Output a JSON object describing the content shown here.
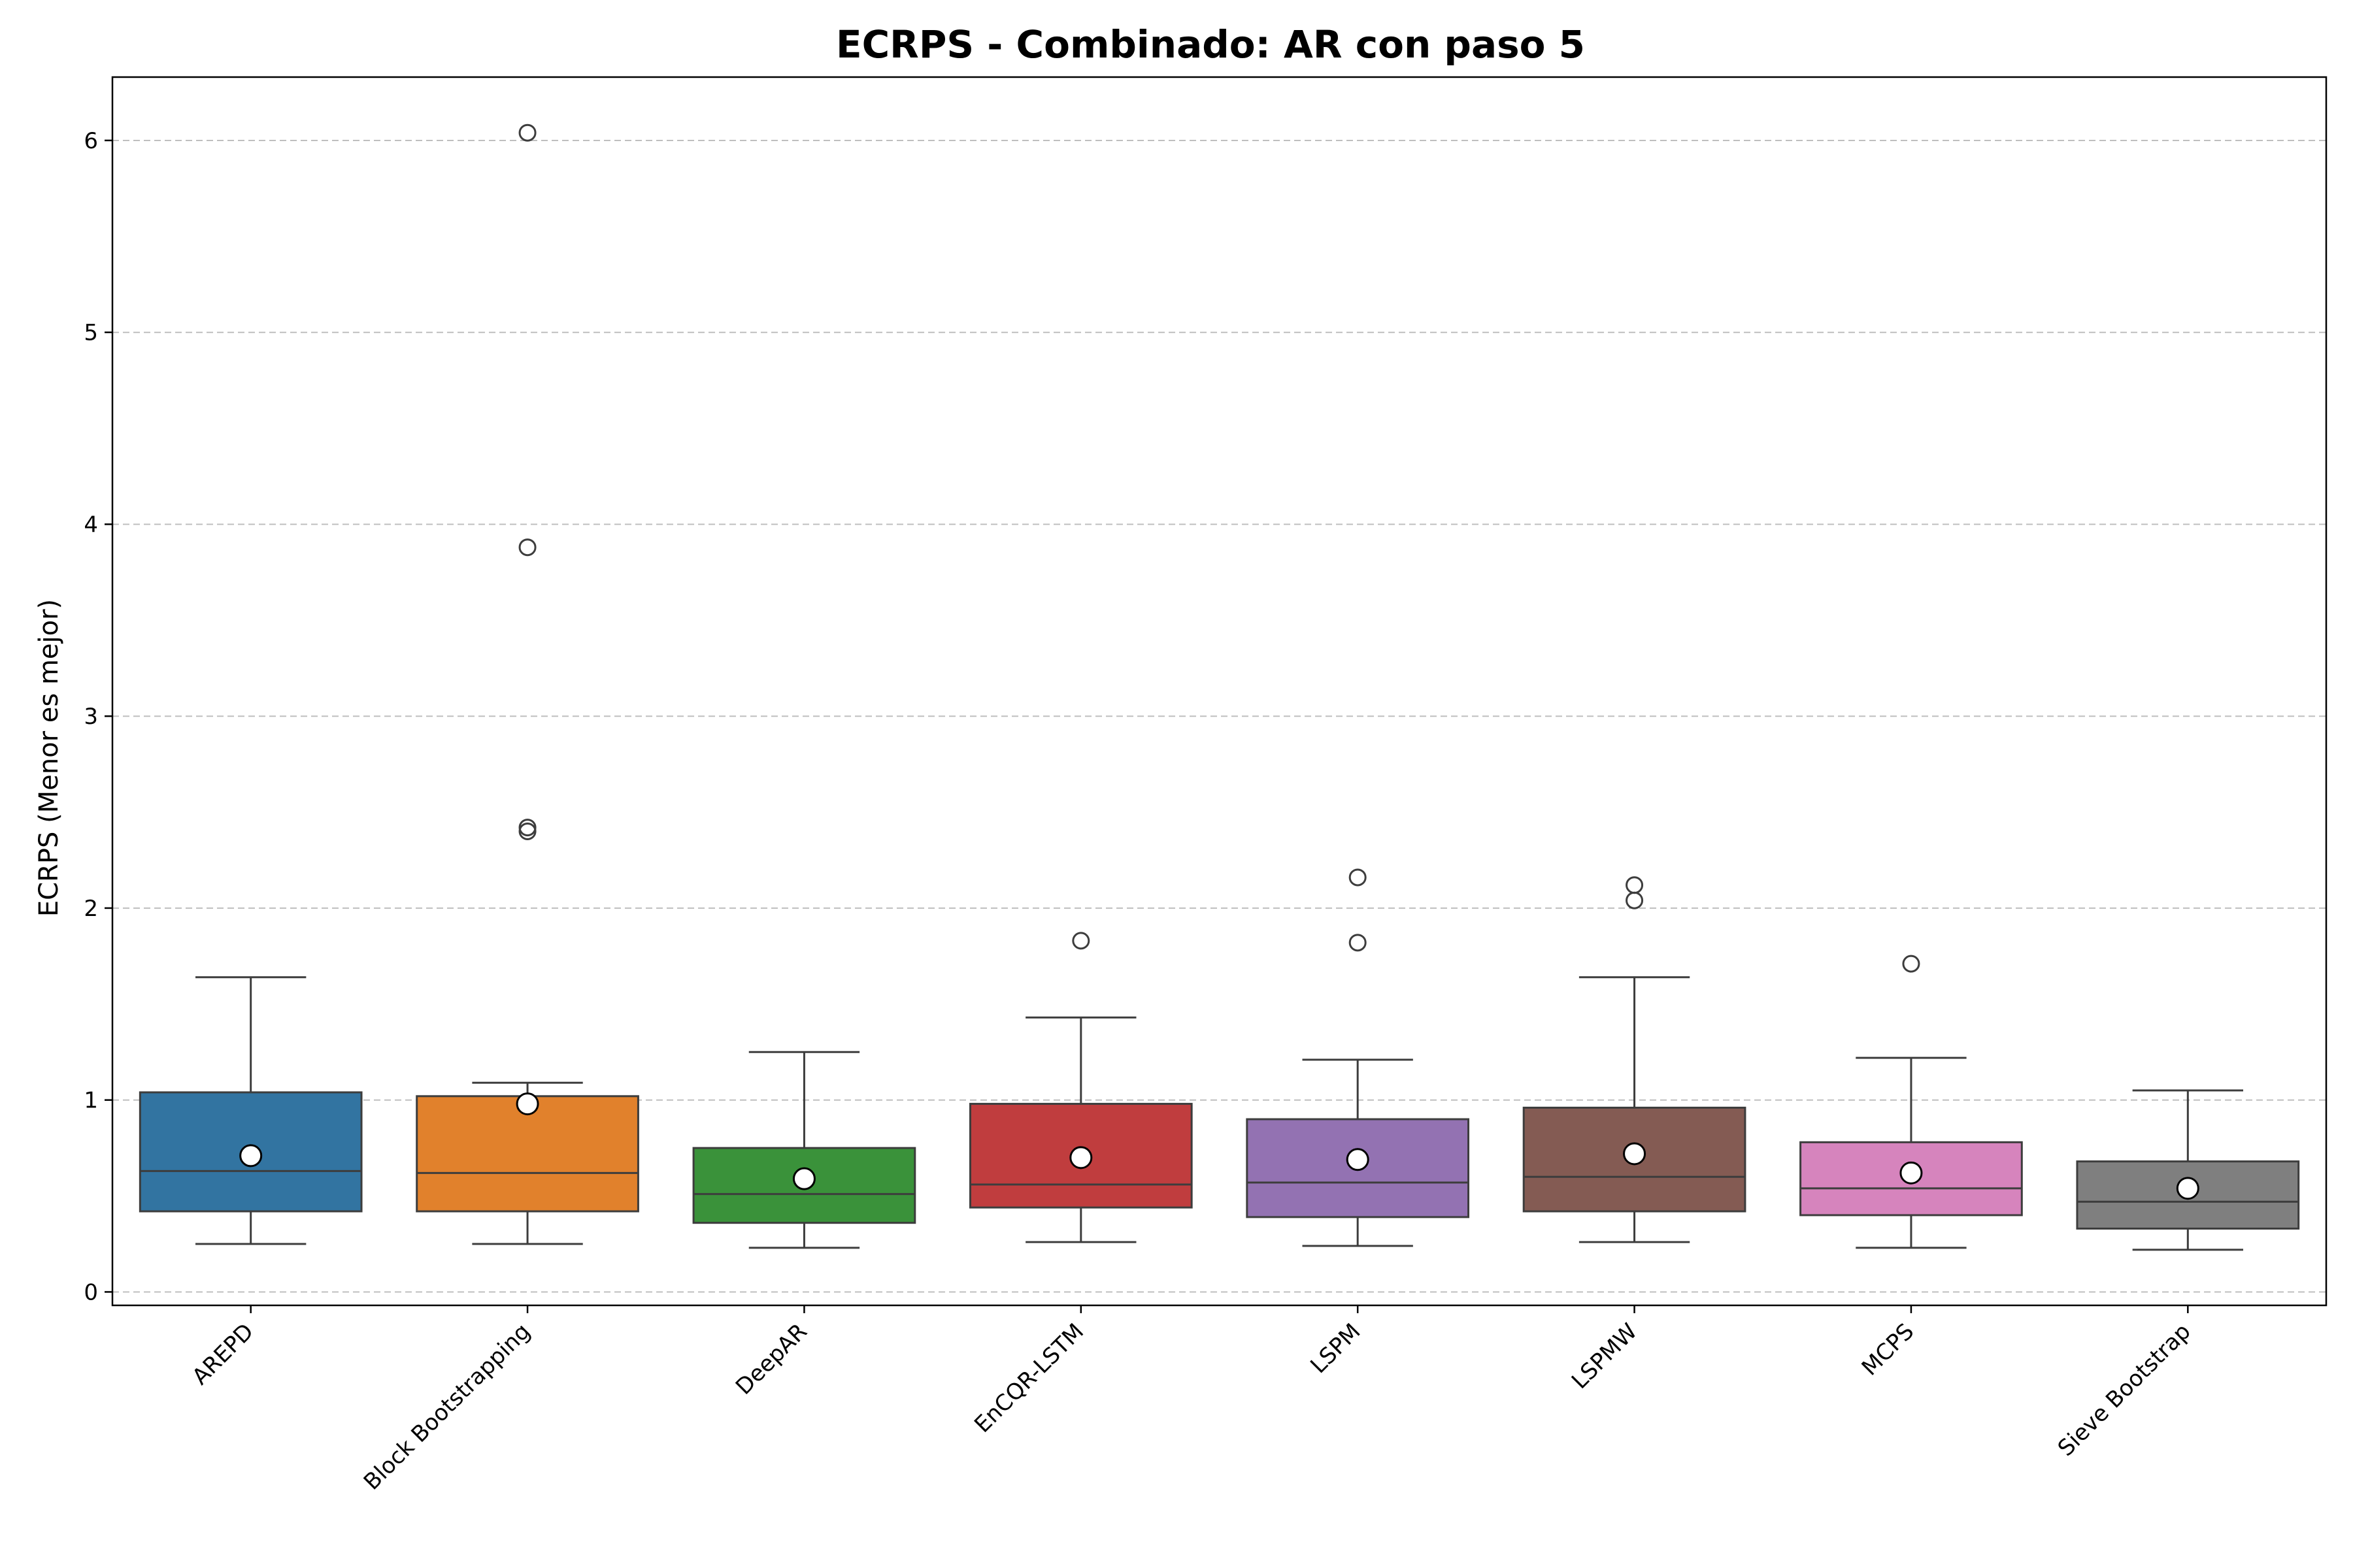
{
  "chart_data": {
    "type": "box",
    "title": "ECRPS - Combinado: AR con paso 5",
    "xlabel": "",
    "ylabel": "ECRPS (Menor es mejor)",
    "ylim": [
      -0.07,
      6.33
    ],
    "yticks": [
      0,
      1,
      2,
      3,
      4,
      5,
      6
    ],
    "grid": "y-dashed",
    "categories": [
      "AREPD",
      "Block Bootstrapping",
      "DeepAR",
      "EnCQR-LSTM",
      "LSPM",
      "LSPMW",
      "MCPS",
      "Sieve Bootstrap"
    ],
    "colors": [
      "#3274a1",
      "#e1812c",
      "#3a923a",
      "#c03d3e",
      "#9372b2",
      "#845b53",
      "#d684bd",
      "#7f7f7f"
    ],
    "boxes": [
      {
        "whisker_low": 0.25,
        "q1": 0.42,
        "median": 0.63,
        "q3": 1.04,
        "whisker_high": 1.64,
        "mean": 0.71,
        "outliers": []
      },
      {
        "whisker_low": 0.25,
        "q1": 0.42,
        "median": 0.62,
        "q3": 1.02,
        "whisker_high": 1.09,
        "mean": 0.98,
        "outliers": [
          2.4,
          2.42,
          3.88,
          6.04
        ]
      },
      {
        "whisker_low": 0.23,
        "q1": 0.36,
        "median": 0.51,
        "q3": 0.75,
        "whisker_high": 1.25,
        "mean": 0.59,
        "outliers": []
      },
      {
        "whisker_low": 0.26,
        "q1": 0.44,
        "median": 0.56,
        "q3": 0.98,
        "whisker_high": 1.43,
        "mean": 0.7,
        "outliers": [
          1.83
        ]
      },
      {
        "whisker_low": 0.24,
        "q1": 0.39,
        "median": 0.57,
        "q3": 0.9,
        "whisker_high": 1.21,
        "mean": 0.69,
        "outliers": [
          1.82,
          2.16
        ]
      },
      {
        "whisker_low": 0.26,
        "q1": 0.42,
        "median": 0.6,
        "q3": 0.96,
        "whisker_high": 1.64,
        "mean": 0.72,
        "outliers": [
          2.04,
          2.12
        ]
      },
      {
        "whisker_low": 0.23,
        "q1": 0.4,
        "median": 0.54,
        "q3": 0.78,
        "whisker_high": 1.22,
        "mean": 0.62,
        "outliers": [
          1.71
        ]
      },
      {
        "whisker_low": 0.22,
        "q1": 0.33,
        "median": 0.47,
        "q3": 0.68,
        "whisker_high": 1.05,
        "mean": 0.54,
        "outliers": []
      }
    ]
  }
}
